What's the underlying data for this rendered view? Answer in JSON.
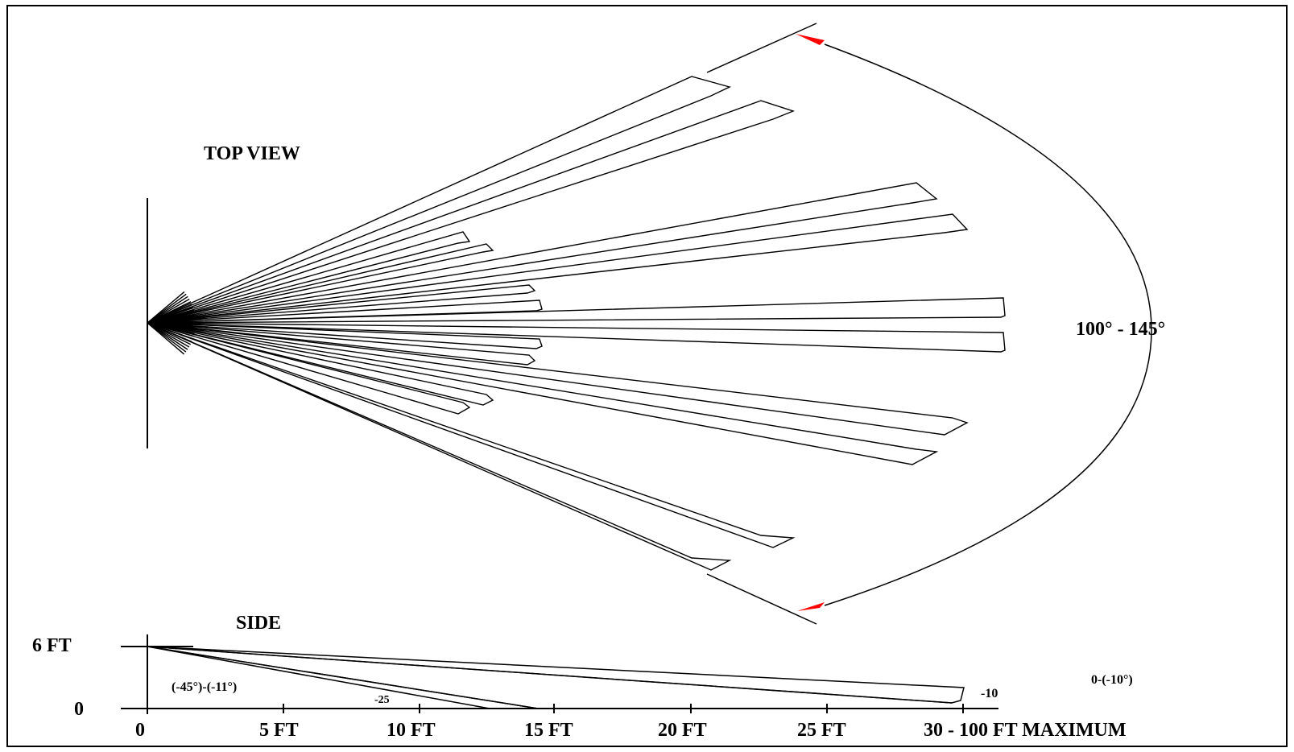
{
  "top_view": {
    "title": "TOP VIEW",
    "angle_label": "100° - 145°"
  },
  "side_view": {
    "title": "SIDE",
    "y_labels": [
      "6 FT",
      "0"
    ],
    "x_ticks": [
      "0",
      "5 FT",
      "10 FT",
      "15 FT",
      "20 FT",
      "25 FT"
    ],
    "x_last": "30 - 100 FT MAXIMUM",
    "beam_labels": {
      "left_range": "(-45°)-(-11°)",
      "mid": "-25",
      "right_end": "-10",
      "right_range": "0-(-10°)"
    }
  },
  "colors": {
    "line": "#000000",
    "arrow": "#ff0000",
    "background": "#ffffff"
  }
}
